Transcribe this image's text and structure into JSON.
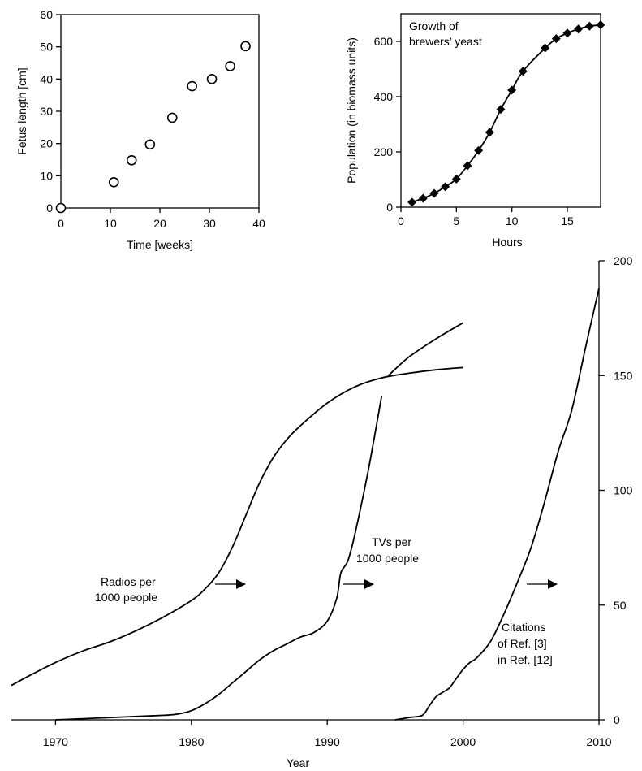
{
  "chart_data": [
    {
      "type": "scatter",
      "title": "",
      "xlabel": "Time [weeks]",
      "ylabel": "Fetus length [cm]",
      "xlim": [
        0,
        40
      ],
      "ylim": [
        0,
        60
      ],
      "xticks": [
        0,
        10,
        20,
        30,
        40
      ],
      "yticks": [
        0,
        10,
        20,
        30,
        40,
        50,
        60
      ],
      "marker": "open-circle",
      "points": [
        {
          "x": 0,
          "y": 0
        },
        {
          "x": 10.7,
          "y": 8
        },
        {
          "x": 14.3,
          "y": 14.8
        },
        {
          "x": 18,
          "y": 19.7
        },
        {
          "x": 22.5,
          "y": 28
        },
        {
          "x": 26.5,
          "y": 37.8
        },
        {
          "x": 30.5,
          "y": 40
        },
        {
          "x": 34.2,
          "y": 44
        },
        {
          "x": 37.3,
          "y": 50.2
        }
      ]
    },
    {
      "type": "line",
      "title": "Growth of brewers' yeast",
      "title_lines": [
        "Growth of",
        "brewers’ yeast"
      ],
      "xlabel": "Hours",
      "ylabel": "Population (in biomass units)",
      "xlim": [
        0,
        18
      ],
      "ylim": [
        0,
        700
      ],
      "xticks": [
        0,
        5,
        10,
        15
      ],
      "yticks": [
        0,
        200,
        400,
        600
      ],
      "marker": "filled-diamond",
      "points": [
        {
          "x": 1,
          "y": 18
        },
        {
          "x": 2,
          "y": 32
        },
        {
          "x": 3,
          "y": 50
        },
        {
          "x": 4,
          "y": 74
        },
        {
          "x": 5,
          "y": 102
        },
        {
          "x": 6,
          "y": 150
        },
        {
          "x": 7,
          "y": 205
        },
        {
          "x": 8,
          "y": 271
        },
        {
          "x": 9,
          "y": 354
        },
        {
          "x": 10,
          "y": 424
        },
        {
          "x": 11,
          "y": 492
        },
        {
          "x": 13,
          "y": 576
        },
        {
          "x": 14,
          "y": 610
        },
        {
          "x": 15,
          "y": 630
        },
        {
          "x": 16,
          "y": 645
        },
        {
          "x": 17,
          "y": 655
        },
        {
          "x": 18,
          "y": 660
        }
      ]
    },
    {
      "type": "line",
      "title": "",
      "xlabel": "Year",
      "ylabel": "",
      "xlim": [
        1966.75,
        2010
      ],
      "xticks": [
        1970,
        1980,
        1990,
        2000,
        2010
      ],
      "right_axis": {
        "ylim": [
          0,
          200
        ],
        "yticks": [
          0,
          50,
          100,
          150,
          200
        ]
      },
      "series": [
        {
          "name": "Radios per 1000 people",
          "label_lines": [
            "Radios per",
            "1000 people"
          ],
          "x": [
            1966.75,
            1968,
            1970,
            1972,
            1974,
            1976,
            1978,
            1980,
            1981,
            1982,
            1983,
            1984,
            1985,
            1986,
            1987,
            1988,
            1990,
            1992,
            1994,
            1996,
            1998,
            2000
          ],
          "y": [
            15,
            19,
            25,
            30,
            34,
            39,
            45,
            52,
            57,
            64,
            75,
            89,
            103,
            114,
            122,
            128,
            138,
            145,
            149,
            151,
            152.5,
            153.5
          ]
        },
        {
          "name": "TVs per 1000 people",
          "label_lines": [
            "TVs per",
            "1000 people"
          ],
          "x": [
            1970,
            1972,
            1974,
            1976,
            1978,
            1979,
            1980,
            1981,
            1982,
            1983,
            1984,
            1985,
            1986,
            1987,
            1988,
            1989,
            1990,
            1990.7,
            1991,
            1991.5,
            1992,
            1993,
            1994
          ],
          "y": [
            0,
            0.5,
            1,
            1.5,
            2,
            2.5,
            4,
            7,
            11,
            16,
            21,
            26,
            30,
            33,
            36,
            38,
            43,
            53,
            64,
            69,
            80,
            108,
            141
          ],
          "continuation": {
            "x": [
              1994.5,
              1996,
              1998,
              2000
            ],
            "y": [
              150,
              158,
              166,
              173
            ]
          }
        },
        {
          "name": "Citations of Ref. [3] in Ref. [12]",
          "label_lines": [
            "Citations",
            "of Ref. [3]",
            "in Ref. [12]"
          ],
          "x": [
            1995,
            1996,
            1997,
            1997.5,
            1998,
            1998.5,
            1999,
            1999.5,
            2000,
            2000.5,
            2001,
            2002,
            2003,
            2004,
            2005,
            2006,
            2007,
            2008,
            2009,
            2010
          ],
          "y": [
            0,
            1,
            2,
            6,
            10,
            12,
            14,
            18,
            22,
            25,
            27,
            34,
            46,
            60,
            75,
            95,
            117,
            135,
            162,
            188
          ]
        }
      ],
      "arrows": [
        "right",
        "right",
        "right"
      ]
    }
  ]
}
